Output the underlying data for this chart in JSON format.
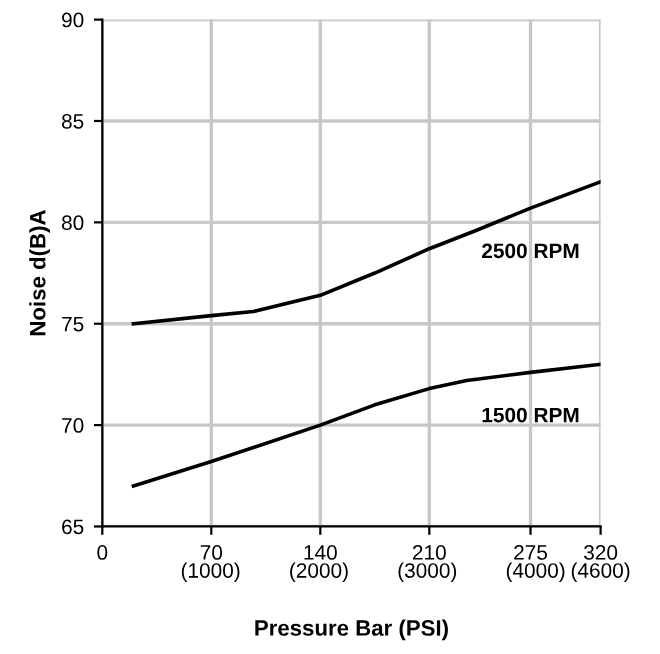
{
  "chart_data": {
    "type": "line",
    "xlabel": "Pressure Bar (PSI)",
    "ylabel": "Noise d(B)A",
    "xlim": [
      0,
      320
    ],
    "ylim": [
      65,
      90
    ],
    "xticks": [
      0,
      70,
      140,
      210,
      275,
      320
    ],
    "x2lim": [
      0,
      4600
    ],
    "x2ticks": [
      {
        "value": 1000,
        "label": "(1000)"
      },
      {
        "value": 2000,
        "label": "(2000)"
      },
      {
        "value": 3000,
        "label": "(3000)"
      },
      {
        "value": 4000,
        "label": "(4000)"
      },
      {
        "value": 4600,
        "label": "(4600)"
      }
    ],
    "yticks": [
      65,
      70,
      75,
      80,
      85,
      90
    ],
    "grid": true,
    "legend": false,
    "marker": "none",
    "line_style": "solid",
    "series": [
      {
        "name": "2500 RPM",
        "color": "#000000",
        "x": [
          20,
          70,
          97,
          140,
          175,
          210,
          240,
          275,
          320
        ],
        "values": [
          75.0,
          75.4,
          75.6,
          76.4,
          77.5,
          78.7,
          79.6,
          80.7,
          82.0
        ]
      },
      {
        "name": "1500 RPM",
        "color": "#000000",
        "x": [
          20,
          70,
          140,
          175,
          210,
          234,
          275,
          320
        ],
        "values": [
          67.0,
          68.2,
          70.0,
          71.0,
          71.8,
          72.2,
          72.6,
          73.0
        ]
      }
    ]
  }
}
